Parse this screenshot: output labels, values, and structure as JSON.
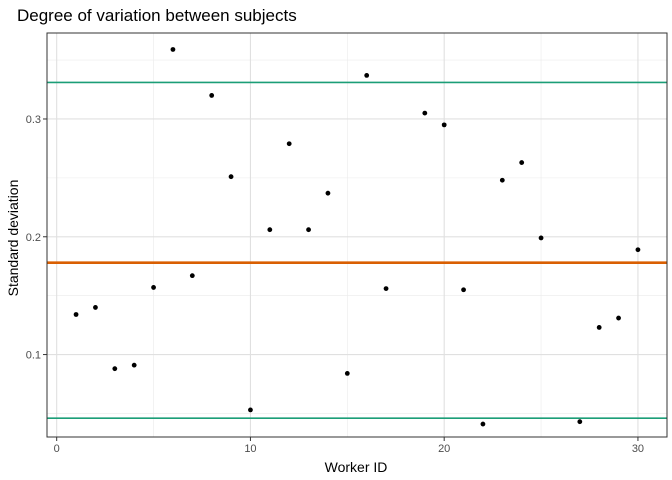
{
  "chart_data": {
    "type": "scatter",
    "title": "Degree of variation between subjects",
    "xlabel": "Worker ID",
    "ylabel": "Standard deviation",
    "xlim": [
      -0.5,
      31.5
    ],
    "ylim": [
      0.03,
      0.373
    ],
    "xticks": [
      0,
      10,
      20,
      30
    ],
    "xtick_labels": [
      "0",
      "10",
      "20",
      "30"
    ],
    "yticks": [
      0.1,
      0.2,
      0.3
    ],
    "ytick_labels": [
      "0.1",
      "0.2",
      "0.3"
    ],
    "grid": true,
    "points": {
      "x": [
        1,
        2,
        3,
        4,
        5,
        6,
        7,
        8,
        9,
        10,
        11,
        12,
        13,
        14,
        15,
        16,
        17,
        19,
        20,
        21,
        22,
        23,
        24,
        25,
        27,
        28,
        29,
        30
      ],
      "y": [
        0.134,
        0.14,
        0.088,
        0.091,
        0.157,
        0.359,
        0.167,
        0.32,
        0.251,
        0.053,
        0.206,
        0.279,
        0.206,
        0.237,
        0.084,
        0.337,
        0.156,
        0.305,
        0.295,
        0.155,
        0.041,
        0.248,
        0.263,
        0.199,
        0.043,
        0.123,
        0.131,
        0.189
      ],
      "color": "#000000"
    },
    "reference_lines": [
      {
        "y": 0.331,
        "color": "#1b9e77"
      },
      {
        "y": 0.178,
        "color": "#d95f02"
      },
      {
        "y": 0.046,
        "color": "#1b9e77"
      }
    ]
  }
}
